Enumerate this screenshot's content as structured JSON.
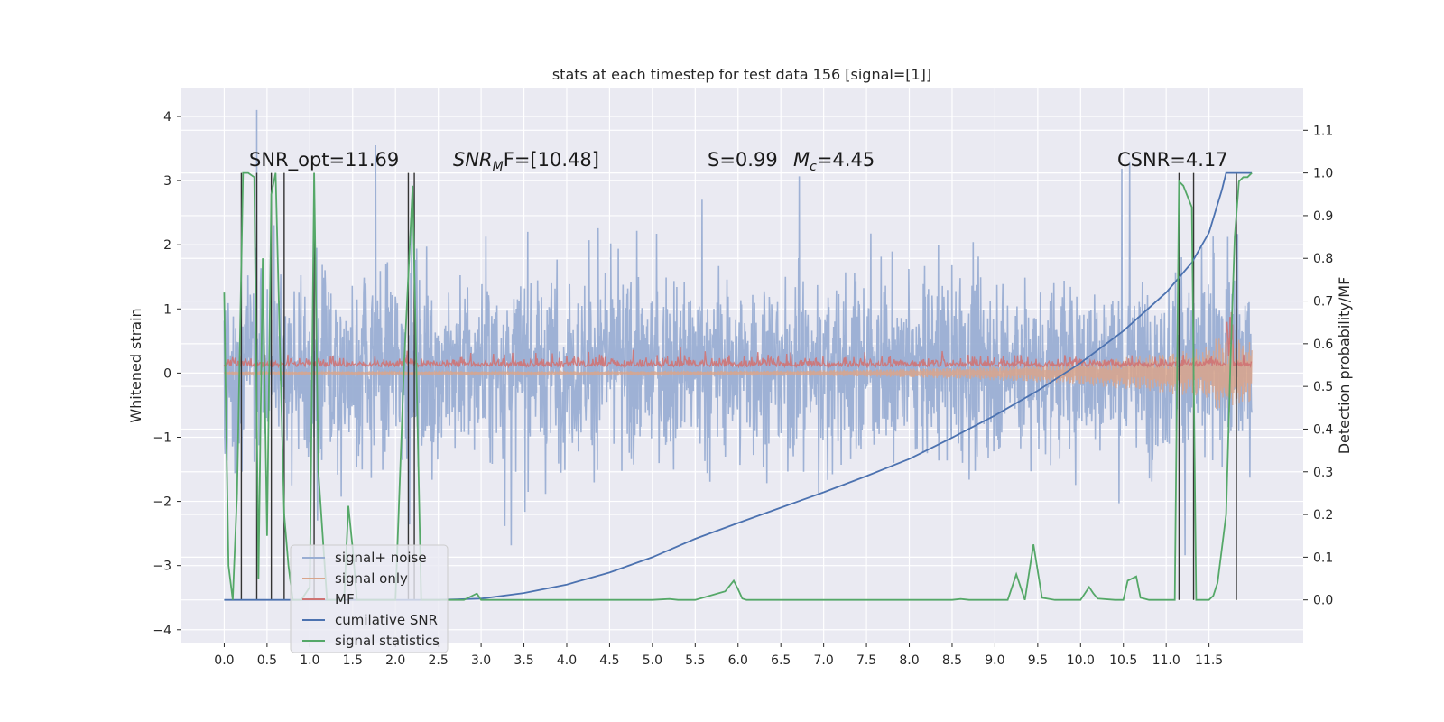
{
  "chart_data": {
    "type": "line",
    "title": "stats at each timestep for test data 156 [signal=[1]]",
    "xlabel": "",
    "ylabel": "Whitened strain",
    "y2label": "Detection probability/MF",
    "xlim": [
      -0.5,
      12.6
    ],
    "ylim": [
      -4.2,
      4.45
    ],
    "y2lim": [
      -0.1,
      1.2
    ],
    "xticks": [
      "0.0",
      "0.5",
      "1.0",
      "1.5",
      "2.0",
      "2.5",
      "3.0",
      "3.5",
      "4.0",
      "4.5",
      "5.0",
      "5.5",
      "6.0",
      "6.5",
      "7.0",
      "7.5",
      "8.0",
      "8.5",
      "9.0",
      "9.5",
      "10.0",
      "10.5",
      "11.0",
      "11.5"
    ],
    "yticks": [
      "4",
      "3",
      "2",
      "1",
      "0",
      "−1",
      "−2",
      "−3",
      "−4"
    ],
    "y2ticks": [
      "1.1",
      "1.0",
      "0.9",
      "0.8",
      "0.7",
      "0.6",
      "0.5",
      "0.4",
      "0.3",
      "0.2",
      "0.1",
      "0.0"
    ],
    "grid": true,
    "legend_position": "bottom-left",
    "annotations": {
      "snr_opt": "SNR_opt=11.69",
      "snr_mf": "SNR",
      "snr_mf_sub": "M",
      "snr_mf_rest": "F=[10.48]",
      "s_val": "S=0.99",
      "mc_val": "M",
      "mc_sub": "c",
      "mc_rest": "=4.45",
      "csnr": "CSNR=4.17"
    },
    "series": [
      {
        "name": "signal+ noise",
        "color": "#9aaed3",
        "kind": "noise",
        "x_range": [
          0.0,
          12.0
        ],
        "approx_amplitude": [
          -3.0,
          4.1
        ],
        "typical_band": [
          -1.5,
          1.8
        ]
      },
      {
        "name": "signal only",
        "color": "#d9a58b",
        "kind": "chirp",
        "x_range": [
          0.0,
          12.0
        ],
        "envelope_start": 0.05,
        "envelope_end": 0.95
      },
      {
        "name": "MF",
        "color": "#cf7373",
        "kind": "noise",
        "x_range": [
          0.0,
          12.0
        ],
        "typical_band": [
          0.0,
          0.25
        ]
      },
      {
        "name": "cumilative SNR",
        "color": "#4c72b0",
        "axis": "y2",
        "x": [
          0,
          2.5,
          3.0,
          3.5,
          4.0,
          4.5,
          5.0,
          5.5,
          6.0,
          6.5,
          7.0,
          7.5,
          8.0,
          8.5,
          9.0,
          9.5,
          10.0,
          10.5,
          11.0,
          11.3,
          11.5,
          11.65,
          11.7,
          12.0
        ],
        "y": [
          0.0,
          0.0,
          0.003,
          0.016,
          0.036,
          0.064,
          0.1,
          0.143,
          0.18,
          0.216,
          0.252,
          0.29,
          0.33,
          0.38,
          0.432,
          0.49,
          0.555,
          0.63,
          0.72,
          0.79,
          0.86,
          0.96,
          1.0,
          1.0
        ]
      },
      {
        "name": "signal statistics",
        "color": "#55a868",
        "axis": "y2",
        "x": [
          0.0,
          0.02,
          0.05,
          0.1,
          0.15,
          0.22,
          0.28,
          0.35,
          0.4,
          0.45,
          0.5,
          0.55,
          0.6,
          0.65,
          0.7,
          0.75,
          0.8,
          0.9,
          1.0,
          1.05,
          1.1,
          1.2,
          1.3,
          1.4,
          1.45,
          1.5,
          1.55,
          1.6,
          2.0,
          2.1,
          2.2,
          2.3,
          2.5,
          2.8,
          2.9,
          2.95,
          3.0,
          5.0,
          5.2,
          5.3,
          5.5,
          5.85,
          5.95,
          6.0,
          6.05,
          6.1,
          8.5,
          8.6,
          8.7,
          9.0,
          9.15,
          9.25,
          9.35,
          9.45,
          9.55,
          9.7,
          10.0,
          10.1,
          10.15,
          10.2,
          10.4,
          10.5,
          10.55,
          10.65,
          10.7,
          10.8,
          11.0,
          11.1,
          11.15,
          11.2,
          11.3,
          11.35,
          11.45,
          11.5,
          11.55,
          11.6,
          11.7,
          11.75,
          11.8,
          11.85,
          11.9,
          11.95,
          12.0
        ],
        "y": [
          0.72,
          0.45,
          0.08,
          0.0,
          0.25,
          1.0,
          1.0,
          0.99,
          0.05,
          0.8,
          0.15,
          0.95,
          1.0,
          0.6,
          0.2,
          0.08,
          0.0,
          0.0,
          0.03,
          1.0,
          0.3,
          0.0,
          0.0,
          0.0,
          0.22,
          0.12,
          0.0,
          0.0,
          0.0,
          0.55,
          0.97,
          0.0,
          0.0,
          0.0,
          0.01,
          0.015,
          0.0,
          0.0,
          0.002,
          0.0,
          0.0,
          0.02,
          0.045,
          0.025,
          0.003,
          0.0,
          0.0,
          0.002,
          0.0,
          0.0,
          0.0,
          0.06,
          0.0,
          0.13,
          0.005,
          0.0,
          0.0,
          0.03,
          0.015,
          0.003,
          0.0,
          0.0,
          0.045,
          0.055,
          0.005,
          0.0,
          0.0,
          0.0,
          0.98,
          0.97,
          0.92,
          0.0,
          0.0,
          0.0,
          0.01,
          0.04,
          0.2,
          0.55,
          0.85,
          0.98,
          0.99,
          0.99,
          1.0
        ]
      }
    ]
  }
}
